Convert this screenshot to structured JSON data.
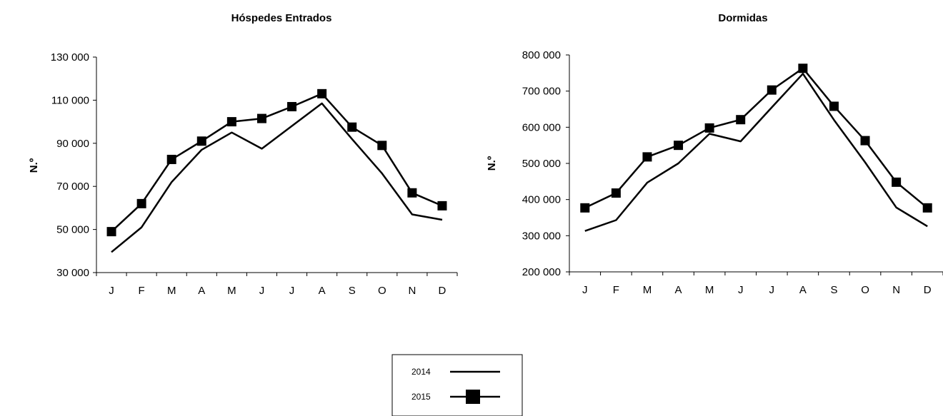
{
  "legend": {
    "items": [
      {
        "label": "2014",
        "marker": "none"
      },
      {
        "label": "2015",
        "marker": "square"
      }
    ]
  },
  "chart_data": [
    {
      "type": "line",
      "title": "Hóspedes Entrados",
      "xlabel": "",
      "ylabel": "N.º",
      "categories": [
        "J",
        "F",
        "M",
        "A",
        "M",
        "J",
        "J",
        "A",
        "S",
        "O",
        "N",
        "D"
      ],
      "ylim": [
        30000,
        130000
      ],
      "yticks": [
        30000,
        50000,
        70000,
        90000,
        110000,
        130000
      ],
      "ytick_labels": [
        "30 000",
        "50 000",
        "70 000",
        "90 000",
        "110 000",
        "130 000"
      ],
      "grid": false,
      "series": [
        {
          "name": "2014",
          "marker": "none",
          "values": [
            39500,
            51000,
            72000,
            87000,
            95000,
            87500,
            98000,
            108500,
            92000,
            76000,
            57000,
            54500
          ]
        },
        {
          "name": "2015",
          "marker": "square",
          "values": [
            49000,
            62000,
            82500,
            91000,
            100000,
            101500,
            107000,
            113000,
            97500,
            89000,
            67000,
            61000
          ]
        }
      ]
    },
    {
      "type": "line",
      "title": "Dormidas",
      "xlabel": "",
      "ylabel": "N.º",
      "categories": [
        "J",
        "F",
        "M",
        "A",
        "M",
        "J",
        "J",
        "A",
        "S",
        "O",
        "N",
        "D"
      ],
      "ylim": [
        200000,
        800000
      ],
      "yticks": [
        200000,
        300000,
        400000,
        500000,
        600000,
        700000,
        800000
      ],
      "ytick_labels": [
        "200 000",
        "300 000",
        "400 000",
        "500 000",
        "600 000",
        "700 000",
        "800 000"
      ],
      "grid": false,
      "series": [
        {
          "name": "2014",
          "marker": "none",
          "values": [
            313000,
            343000,
            447000,
            500000,
            582000,
            561000,
            655000,
            748000,
            620000,
            503000,
            378000,
            326000
          ]
        },
        {
          "name": "2015",
          "marker": "square",
          "values": [
            377000,
            418000,
            518000,
            550000,
            598000,
            621000,
            703000,
            763000,
            658000,
            563000,
            448000,
            377000
          ]
        }
      ]
    }
  ]
}
